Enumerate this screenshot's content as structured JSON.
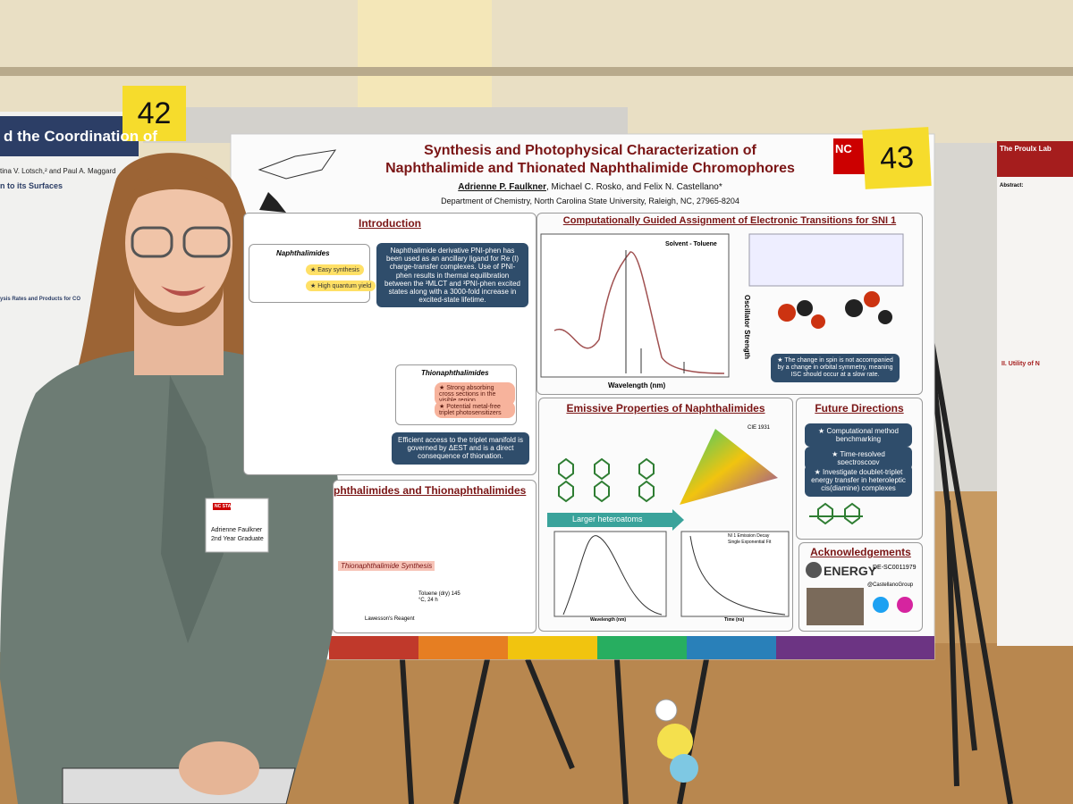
{
  "signs": {
    "left": "42",
    "right": "43"
  },
  "left_poster": {
    "title": "d the Coordination of",
    "authors": "tina V. Lotsch,² and Paul A. Maggard",
    "section_1": "n to its Surfaces",
    "section_2": "ysis Rates and Products for CO"
  },
  "poster": {
    "title_line_1": "Synthesis and Photophysical Characterization of",
    "title_line_2": "Naphthalimide and Thionated Naphthalimide Chromophores",
    "lead_author": "Adrienne P. Faulkner",
    "coauthors": ", Michael C. Rosko, and Felix N. Castellano*",
    "department": "Department of Chemistry, North Carolina State University, Raleigh, NC, 27965-8204",
    "logo": "NC",
    "introduction": {
      "heading": "Introduction",
      "naphthalimides": "Naphthalimides",
      "point_1": "★ Easy synthesis",
      "point_2": "★ High quantum yield",
      "summary": "Naphthalimide derivative PNI-phen has been used as an ancillary ligand for Re (I) charge-transfer complexes. Use of PNI-phen results in thermal equilibration between the ³MLCT and ³PNI-phen excited states along with a 3000-fold increase in excited-state lifetime.",
      "thionaphthalimides": "Thionaphthalimides",
      "point_3": "★ Strong absorbing cross sections in the visible region",
      "point_4": "★ Potential metal-free triplet photosensitizers",
      "conclusion": "Efficient access to the triplet manifold is governed by ΔEST and is a direct consequence of thionation."
    },
    "synthesis": {
      "heading": "phthalimides and Thionaphthalimides",
      "subheading": "Thionaphthalimide Synthesis",
      "reagent": "Lawesson's Reagent",
      "conditions": "Toluene (dry) 145 °C, 24 h"
    },
    "computation": {
      "heading": "Computationally Guided Assignment of Electronic Transitions for SNI 1",
      "solvent": "Solvent - Toluene",
      "x_label": "Wavelength (nm)",
      "y2_label": "Oscillator Strength",
      "note": "★ The change in spin is not accompanied by a change in orbital symmetry, meaning ISC should occur at a slow rate."
    },
    "emission": {
      "heading": "Emissive Properties of Naphthalimides",
      "arrow": "Larger heteroatoms",
      "cie": "CIE 1931",
      "decay_legend": "NI 1 Emission Decay",
      "fit_legend": "Single Exponential Fit",
      "x_label": "Wavelength (nm)",
      "time_label": "Time (ns)"
    },
    "future": {
      "heading": "Future Directions",
      "item_1": "★ Computational method benchmarking",
      "item_2": "★ Time-resolved spectroscopy",
      "item_3": "★ Investigate doublet-triplet energy transfer in heteroleptic cis(diamine) complexes"
    },
    "acknowledgements": {
      "heading": "Acknowledgements",
      "agency": "ENERGY",
      "grant": "DE-SC0011979",
      "handle": "@CastellanoGroup"
    }
  },
  "right_poster": {
    "title": "The Proulx Lab",
    "abstract": "Abstract:",
    "section": "II. Utility of N"
  },
  "badge": {
    "org": "NC STATE",
    "name": "Adrienne Faulkner",
    "role": "2nd Year Graduate"
  }
}
